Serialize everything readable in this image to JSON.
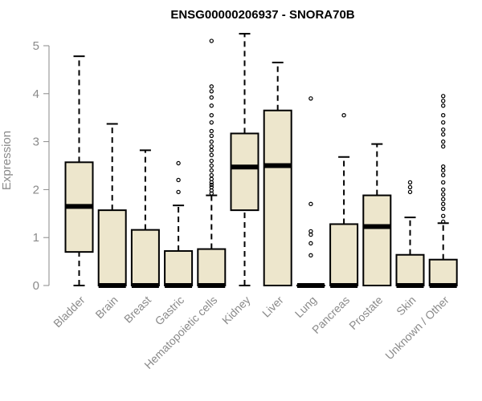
{
  "chart_data": {
    "type": "boxplot",
    "title": "ENSG00000206937 - SNORA70B",
    "xlabel": "",
    "ylabel": "Expression",
    "ylim": [
      0,
      5.2
    ],
    "yticks": [
      "0",
      "1",
      "2",
      "3",
      "4",
      "5"
    ],
    "grid": false,
    "box_color": "#ede6cc",
    "series": [
      {
        "name": "Bladder",
        "q1": 0.7,
        "median": 1.65,
        "q3": 2.57,
        "whisker_low": 0.0,
        "whisker_high": 4.78,
        "outliers": []
      },
      {
        "name": "Brain",
        "q1": 0.0,
        "median": 0.0,
        "q3": 1.57,
        "whisker_low": 0.0,
        "whisker_high": 3.37,
        "outliers": []
      },
      {
        "name": "Breast",
        "q1": 0.0,
        "median": 0.0,
        "q3": 1.16,
        "whisker_low": 0.0,
        "whisker_high": 2.82,
        "outliers": []
      },
      {
        "name": "Gastric",
        "q1": 0.0,
        "median": 0.0,
        "q3": 0.72,
        "whisker_low": 0.0,
        "whisker_high": 1.67,
        "outliers": [
          1.95,
          2.2,
          2.55
        ]
      },
      {
        "name": "Hematopoietic cells",
        "q1": 0.0,
        "median": 0.0,
        "q3": 0.76,
        "whisker_low": 0.0,
        "whisker_high": 1.88,
        "outliers": [
          1.92,
          1.98,
          2.05,
          2.1,
          2.15,
          2.22,
          2.3,
          2.4,
          2.5,
          2.6,
          2.72,
          2.82,
          2.9,
          3.0,
          3.12,
          3.22,
          3.4,
          3.55,
          3.75,
          3.92,
          4.05,
          4.15,
          5.1
        ]
      },
      {
        "name": "Kidney",
        "q1": 1.57,
        "median": 2.47,
        "q3": 3.17,
        "whisker_low": 0.0,
        "whisker_high": 5.25,
        "outliers": []
      },
      {
        "name": "Liver",
        "q1": 0.0,
        "median": 2.5,
        "q3": 3.65,
        "whisker_low": 0.0,
        "whisker_high": 4.65,
        "outliers": []
      },
      {
        "name": "Lung",
        "q1": 0.0,
        "median": 0.0,
        "q3": 0.0,
        "whisker_low": 0.0,
        "whisker_high": 0.0,
        "outliers": [
          0.63,
          0.88,
          1.06,
          1.13,
          1.7,
          3.9
        ]
      },
      {
        "name": "Pancreas",
        "q1": 0.0,
        "median": 0.0,
        "q3": 1.28,
        "whisker_low": 0.0,
        "whisker_high": 2.68,
        "outliers": [
          3.55
        ]
      },
      {
        "name": "Prostate",
        "q1": 0.0,
        "median": 1.23,
        "q3": 1.88,
        "whisker_low": 0.0,
        "whisker_high": 2.95,
        "outliers": []
      },
      {
        "name": "Skin",
        "q1": 0.0,
        "median": 0.0,
        "q3": 0.64,
        "whisker_low": 0.0,
        "whisker_high": 1.42,
        "outliers": [
          1.95,
          2.05,
          2.15
        ]
      },
      {
        "name": "Unknown / Other",
        "q1": 0.0,
        "median": 0.0,
        "q3": 0.54,
        "whisker_low": 0.0,
        "whisker_high": 1.3,
        "outliers": [
          1.33,
          1.45,
          1.6,
          1.7,
          1.8,
          1.9,
          2.0,
          2.15,
          2.3,
          2.4,
          2.48,
          2.9,
          3.0,
          3.15,
          3.25,
          3.4,
          3.55,
          3.75,
          3.85,
          3.95
        ]
      }
    ]
  }
}
